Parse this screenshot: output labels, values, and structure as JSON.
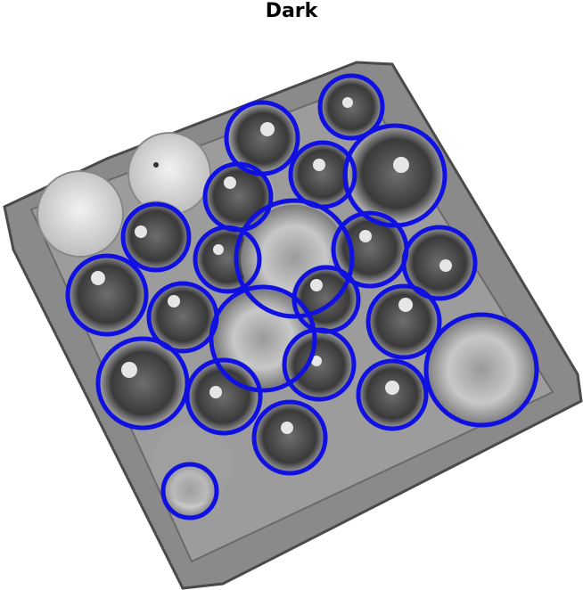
{
  "title": "Dark",
  "colors": {
    "background": "#ffffff",
    "tray": "#8a8a8a",
    "tray_edge": "#5a5a5a",
    "well": "#3d3d3d",
    "detection_circle": "#1010e0"
  },
  "detections": [
    {
      "kind": "seedling"
    },
    {
      "kind": "seedling"
    },
    {
      "kind": "seedling"
    },
    {
      "kind": "seedling"
    },
    {
      "kind": "seedling"
    },
    {
      "kind": "seedling"
    },
    {
      "kind": "seedling"
    },
    {
      "kind": "seedling"
    },
    {
      "kind": "seedling"
    },
    {
      "kind": "seedling"
    },
    {
      "kind": "seedling"
    },
    {
      "kind": "seedling"
    },
    {
      "kind": "seedling"
    },
    {
      "kind": "seedling"
    },
    {
      "kind": "seedling"
    },
    {
      "kind": "seedling"
    },
    {
      "kind": "seedling"
    },
    {
      "kind": "empty-well"
    },
    {
      "kind": "empty-well"
    },
    {
      "kind": "empty-well"
    },
    {
      "kind": "seedling"
    },
    {
      "kind": "empty-well"
    }
  ]
}
